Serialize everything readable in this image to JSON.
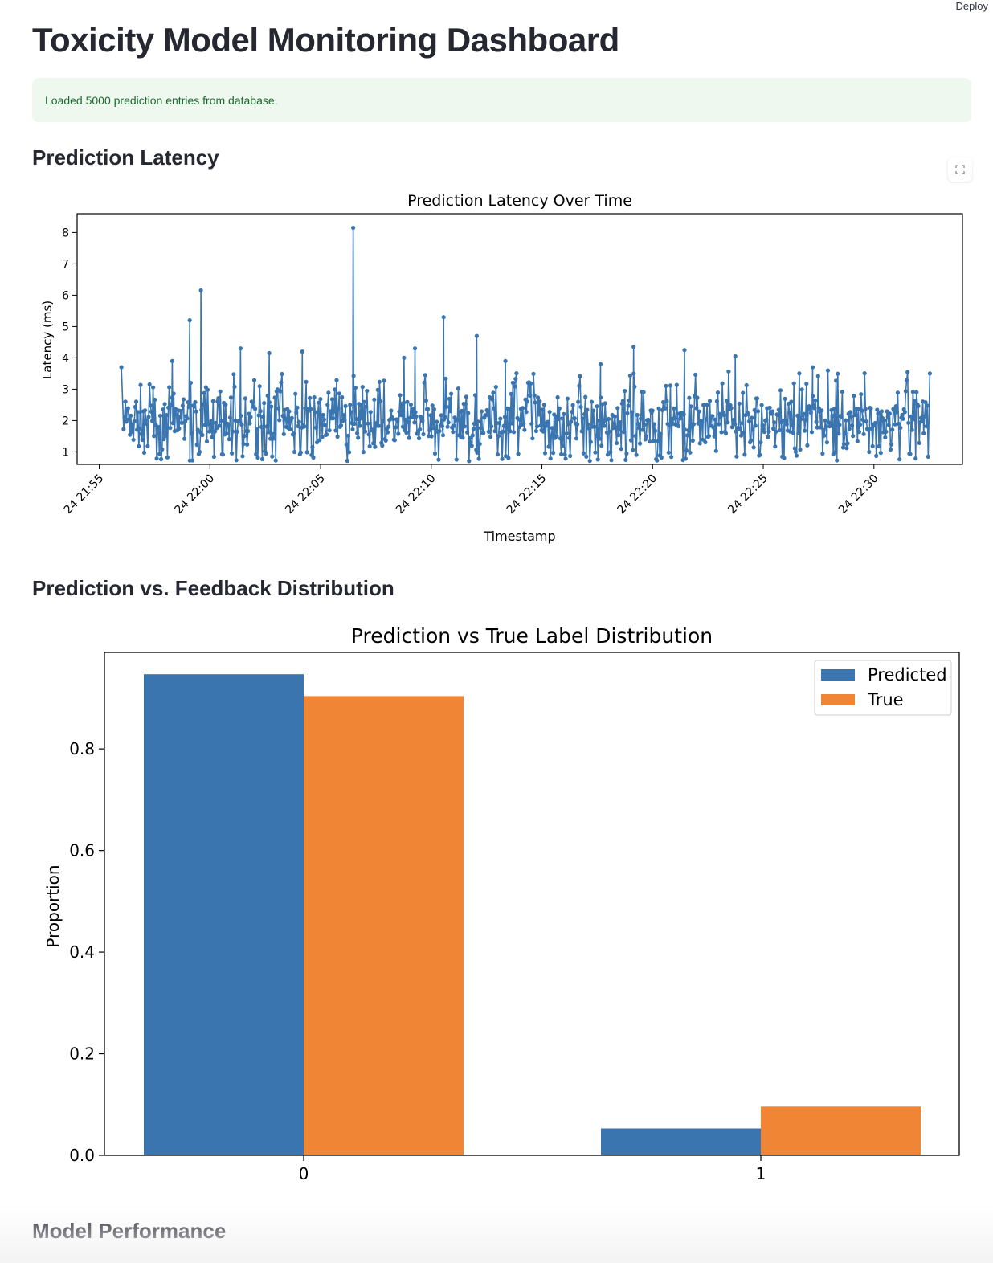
{
  "header": {
    "deploy_label": "Deploy"
  },
  "page": {
    "title": "Toxicity Model Monitoring Dashboard"
  },
  "alert": {
    "message": "Loaded 5000 prediction entries from database."
  },
  "sections": {
    "latency": "Prediction Latency",
    "distribution": "Prediction vs. Feedback Distribution",
    "performance": "Model Performance"
  },
  "colors": {
    "predicted": "#3a75af",
    "true": "#ef8535",
    "success_bg": "#eef8ef",
    "success_text": "#1e6a2e"
  },
  "icons": {
    "fullscreen": "fullscreen-icon"
  },
  "chart_data": [
    {
      "type": "line",
      "title": "Prediction Latency Over Time",
      "xlabel": "Timestamp",
      "ylabel": "Latency (ms)",
      "xlim": [
        "24 21:54",
        "24 22:34"
      ],
      "ylim": [
        0.6,
        8.6
      ],
      "x_ticks": [
        "24 21:55",
        "24 22:00",
        "24 22:05",
        "24 22:10",
        "24 22:15",
        "24 22:20",
        "24 22:25",
        "24 22:30"
      ],
      "y_ticks": [
        1,
        2,
        3,
        4,
        5,
        6,
        7,
        8
      ],
      "series": [
        {
          "x_range": [
            "24 21:56",
            "24 22:32"
          ],
          "typical_range": [
            0.7,
            3.0
          ],
          "mean": 2.0,
          "peaks": [
            {
              "x": "24 21:56",
              "y": 3.7
            },
            {
              "x": "24 21:58",
              "y": 3.9
            },
            {
              "x": "24 21:59",
              "y": 6.15
            },
            {
              "x": "24 21:59",
              "y": 5.2
            },
            {
              "x": "24 22:01",
              "y": 4.3
            },
            {
              "x": "24 22:02",
              "y": 4.15
            },
            {
              "x": "24 22:04",
              "y": 4.2
            },
            {
              "x": "24 22:06",
              "y": 8.15
            },
            {
              "x": "24 22:08",
              "y": 4.0
            },
            {
              "x": "24 22:09",
              "y": 4.3
            },
            {
              "x": "24 22:10",
              "y": 5.3
            },
            {
              "x": "24 22:12",
              "y": 4.7
            },
            {
              "x": "24 22:13",
              "y": 3.9
            },
            {
              "x": "24 22:17",
              "y": 3.8
            },
            {
              "x": "24 22:19",
              "y": 4.35
            },
            {
              "x": "24 22:21",
              "y": 4.25
            },
            {
              "x": "24 22:23",
              "y": 4.05
            },
            {
              "x": "24 22:27",
              "y": 3.7
            },
            {
              "x": "24 22:32",
              "y": 3.5
            }
          ]
        }
      ]
    },
    {
      "type": "bar",
      "title": "Prediction vs True Label Distribution",
      "xlabel": "",
      "ylabel": "Proportion",
      "categories": [
        "0",
        "1"
      ],
      "ylim": [
        0,
        0.99
      ],
      "y_ticks": [
        "0.0",
        "0.2",
        "0.4",
        "0.6",
        "0.8"
      ],
      "legend": "top-right",
      "series": [
        {
          "name": "Predicted",
          "values": [
            0.947,
            0.053
          ]
        },
        {
          "name": "True",
          "values": [
            0.904,
            0.096
          ]
        }
      ]
    }
  ]
}
